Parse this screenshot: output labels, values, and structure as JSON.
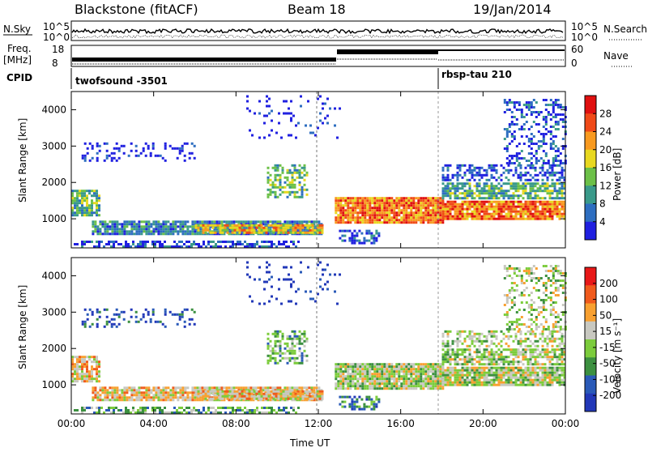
{
  "header": {
    "title": "Blackstone (fitACF)",
    "beam": "Beam 18",
    "date": "19/Jan/2014"
  },
  "noise_panel": {
    "left_label": "N.Sky",
    "right_label": "N.Search",
    "left_ticks": [
      "10^5",
      "10^0"
    ],
    "right_ticks": [
      "10^5",
      "10^0"
    ]
  },
  "freq_panel": {
    "label_top": "Freq.",
    "label_unit": "[MHz]",
    "left_ticks": [
      "18",
      "8"
    ],
    "right_label": "Nave",
    "right_ticks": [
      "60",
      "0"
    ]
  },
  "cpid": {
    "label": "CPID",
    "program_1": "twofsound -3501",
    "program_2": "rbsp-tau 210"
  },
  "chart_data": [
    {
      "type": "heatmap",
      "panel": "power",
      "ylabel": "Slant Range [km]",
      "xlabel": "Time UT",
      "x_ticks": [
        "00:00",
        "04:00",
        "08:00",
        "12:00",
        "16:00",
        "20:00",
        "00:00"
      ],
      "y_ticks": [
        "1000",
        "2000",
        "3000",
        "4000"
      ],
      "ylim": [
        200,
        4500
      ],
      "xlim_hours": [
        0,
        24
      ],
      "colorbar_label": "Power [dB]",
      "colorbar_ticks": [
        "4",
        "8",
        "12",
        "16",
        "20",
        "24",
        "28"
      ],
      "colorbar_colors": [
        "#2020e0",
        "#2e6ec0",
        "#3a9a8a",
        "#6cc048",
        "#e8d820",
        "#f89a20",
        "#f04a18",
        "#e01010"
      ]
    },
    {
      "type": "heatmap",
      "panel": "velocity",
      "ylabel": "Slant Range [km]",
      "xlabel": "Time UT",
      "x_ticks": [
        "00:00",
        "04:00",
        "08:00",
        "12:00",
        "16:00",
        "20:00",
        "00:00"
      ],
      "y_ticks": [
        "1000",
        "2000",
        "3000",
        "4000"
      ],
      "ylim": [
        200,
        4500
      ],
      "xlim_hours": [
        0,
        24
      ],
      "colorbar_label": "Velocity [m s⁻¹]",
      "colorbar_ticks": [
        "200",
        "100",
        "50",
        "15",
        "-15",
        "-50",
        "-100",
        "-200"
      ],
      "colorbar_colors": [
        "#2238b8",
        "#2a5ab8",
        "#3c9040",
        "#7ccc3c",
        "#c8c8c0",
        "#f8a030",
        "#f05a1c",
        "#e81818"
      ]
    }
  ]
}
